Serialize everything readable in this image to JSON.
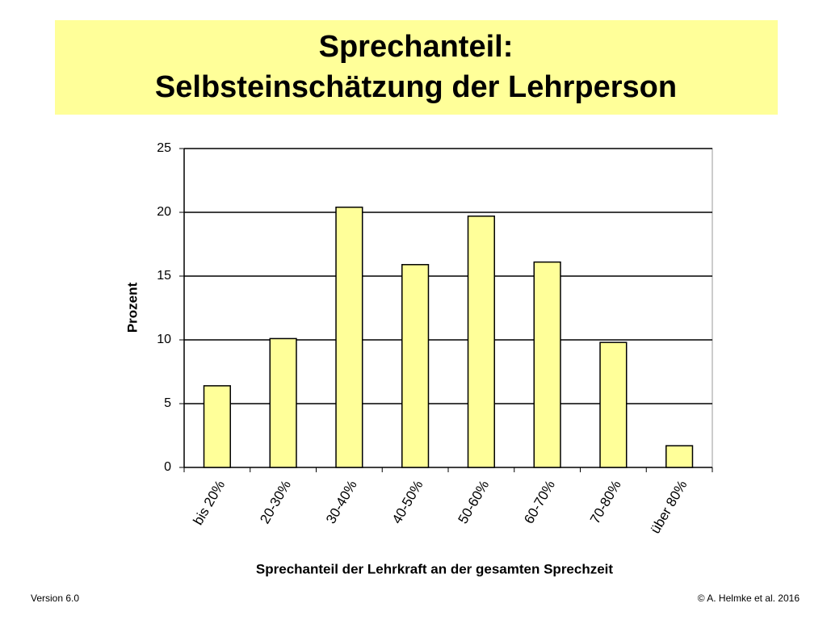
{
  "chart_data": {
    "type": "bar",
    "title": "Sprechanteil:",
    "subtitle": "Selbsteinschätzung der Lehrperson",
    "y_label": "Prozent",
    "x_label": "Sprechanteil der Lehrkraft an der gesamten Sprechzeit",
    "categories": [
      "bis 20%",
      "20-30%",
      "30-40%",
      "40-50%",
      "50-60%",
      "60-70%",
      "70-80%",
      "über 80%"
    ],
    "values": [
      6.4,
      10.1,
      20.4,
      15.9,
      19.7,
      16.1,
      9.8,
      1.7
    ],
    "color": "#ffff99",
    "ylim": [
      0,
      25
    ],
    "yticks": [
      0,
      5,
      10,
      15,
      20,
      25
    ],
    "grid": true
  },
  "footer": {
    "left": "Version 6.0",
    "right": "© A. Helmke et al. 2016"
  }
}
